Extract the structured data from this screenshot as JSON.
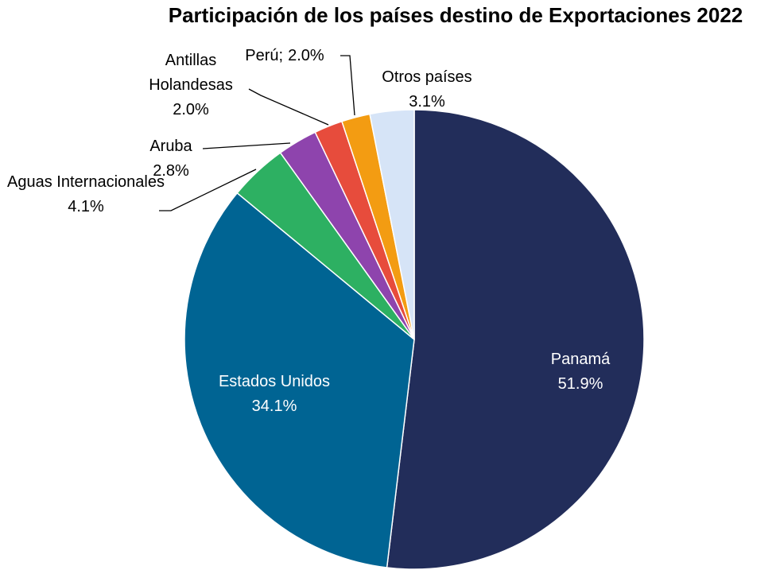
{
  "chart_data": {
    "type": "pie",
    "title": "Participación de los países destino de Exportaciones 2022",
    "categories": [
      "Panamá",
      "Estados Unidos",
      "Aguas Internacionales",
      "Aruba",
      "Antillas Holandesas",
      "Perú;",
      "Otros países"
    ],
    "values": [
      51.9,
      34.1,
      4.1,
      2.8,
      2.0,
      2.0,
      3.1
    ],
    "value_labels": [
      "51.9%",
      "34.1%",
      "4.1%",
      "2.8%",
      "2.0%",
      "2.0%",
      "3.1%"
    ],
    "colors": [
      "#222d5a",
      "#006493",
      "#2db062",
      "#8e44ad",
      "#e74c3c",
      "#f39c12",
      "#d6e4f7"
    ]
  }
}
